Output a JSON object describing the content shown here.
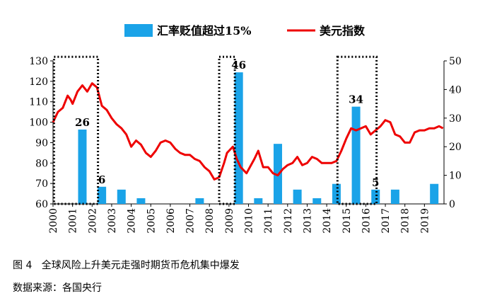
{
  "caption": {
    "figure": "图 4   全球风险上升美元走强时期货币危机集中爆发",
    "source": "数据来源：各国央行"
  },
  "chart_data": {
    "type": "bar+line",
    "legend": {
      "placement": "top-center",
      "bar_label": "汇率贬值超过15%",
      "line_label": "美元指数"
    },
    "colors": {
      "bar": "#1aa3e8",
      "line": "#ee0000",
      "highlight_box": "#000000"
    },
    "left_axis": {
      "ylim": [
        60,
        130
      ],
      "ticks": [
        60,
        70,
        80,
        90,
        100,
        110,
        120,
        130
      ]
    },
    "right_axis": {
      "ylim": [
        0,
        50
      ],
      "ticks": [
        0,
        10,
        20,
        30,
        40,
        50
      ]
    },
    "x_axis": {
      "range": [
        2000,
        2020
      ],
      "tick_labels": [
        "2000",
        "2001",
        "2002",
        "2003",
        "2004",
        "2005",
        "2006",
        "2007",
        "2008",
        "2009",
        "2010",
        "2011",
        "2012",
        "2013",
        "2014",
        "2015",
        "2016",
        "2017",
        "2018",
        "2019"
      ]
    },
    "bars": {
      "name": "汇率贬值超过15%",
      "axis": "right",
      "points": [
        {
          "x": 2001,
          "value": 26,
          "label": "26"
        },
        {
          "x": 2002,
          "value": 6,
          "label": "6"
        },
        {
          "x": 2003,
          "value": 5
        },
        {
          "x": 2004,
          "value": 2
        },
        {
          "x": 2007,
          "value": 2
        },
        {
          "x": 2009,
          "value": 46,
          "label": "46"
        },
        {
          "x": 2010,
          "value": 2
        },
        {
          "x": 2011,
          "value": 21
        },
        {
          "x": 2012,
          "value": 5
        },
        {
          "x": 2013,
          "value": 2
        },
        {
          "x": 2014,
          "value": 7
        },
        {
          "x": 2015,
          "value": 34,
          "label": "34"
        },
        {
          "x": 2016,
          "value": 5,
          "label": "5"
        },
        {
          "x": 2017,
          "value": 5
        },
        {
          "x": 2019,
          "value": 7
        }
      ]
    },
    "line": {
      "name": "美元指数",
      "axis": "left",
      "points": [
        [
          2000.0,
          100
        ],
        [
          2000.25,
          105
        ],
        [
          2000.5,
          107
        ],
        [
          2000.75,
          113
        ],
        [
          2000.9,
          111
        ],
        [
          2001.0,
          109
        ],
        [
          2001.25,
          115
        ],
        [
          2001.5,
          118
        ],
        [
          2001.75,
          115
        ],
        [
          2002.0,
          119
        ],
        [
          2002.25,
          117
        ],
        [
          2002.5,
          108
        ],
        [
          2002.75,
          106
        ],
        [
          2003.0,
          102
        ],
        [
          2003.25,
          99
        ],
        [
          2003.5,
          97
        ],
        [
          2003.75,
          94
        ],
        [
          2004.0,
          88
        ],
        [
          2004.25,
          91
        ],
        [
          2004.5,
          89
        ],
        [
          2004.75,
          85
        ],
        [
          2005.0,
          83
        ],
        [
          2005.25,
          86
        ],
        [
          2005.5,
          90
        ],
        [
          2005.75,
          91
        ],
        [
          2006.0,
          90
        ],
        [
          2006.25,
          87
        ],
        [
          2006.5,
          85
        ],
        [
          2006.75,
          84
        ],
        [
          2007.0,
          84
        ],
        [
          2007.25,
          82
        ],
        [
          2007.5,
          81
        ],
        [
          2007.75,
          78
        ],
        [
          2008.0,
          76
        ],
        [
          2008.25,
          72
        ],
        [
          2008.5,
          73
        ],
        [
          2008.75,
          80
        ],
        [
          2008.9,
          85
        ],
        [
          2009.0,
          86
        ],
        [
          2009.2,
          88
        ],
        [
          2009.4,
          82
        ],
        [
          2009.6,
          78
        ],
        [
          2009.9,
          75
        ],
        [
          2010.3,
          82
        ],
        [
          2010.5,
          86
        ],
        [
          2010.75,
          78
        ],
        [
          2011.0,
          78
        ],
        [
          2011.25,
          75
        ],
        [
          2011.5,
          74
        ],
        [
          2011.75,
          77
        ],
        [
          2012.0,
          79
        ],
        [
          2012.25,
          80
        ],
        [
          2012.5,
          83
        ],
        [
          2012.75,
          79
        ],
        [
          2013.0,
          80
        ],
        [
          2013.25,
          83
        ],
        [
          2013.5,
          82
        ],
        [
          2013.75,
          80
        ],
        [
          2014.0,
          80
        ],
        [
          2014.25,
          80
        ],
        [
          2014.5,
          81
        ],
        [
          2014.75,
          86
        ],
        [
          2015.0,
          92
        ],
        [
          2015.25,
          97
        ],
        [
          2015.5,
          96
        ],
        [
          2015.75,
          97
        ],
        [
          2016.0,
          98
        ],
        [
          2016.25,
          94
        ],
        [
          2016.5,
          96
        ],
        [
          2016.75,
          98
        ],
        [
          2017.0,
          101
        ],
        [
          2017.25,
          100
        ],
        [
          2017.5,
          94
        ],
        [
          2017.75,
          93
        ],
        [
          2018.0,
          90
        ],
        [
          2018.25,
          90
        ],
        [
          2018.5,
          95
        ],
        [
          2018.75,
          96
        ],
        [
          2019.0,
          96
        ],
        [
          2019.25,
          97
        ],
        [
          2019.5,
          97
        ],
        [
          2019.75,
          98
        ],
        [
          2019.95,
          97
        ]
      ]
    },
    "highlight_boxes": [
      {
        "x": [
          2000.05,
          2002.3
        ],
        "y": [
          60,
          132
        ]
      },
      {
        "x": [
          2008.5,
          2009.3
        ],
        "y": [
          60,
          132
        ]
      },
      {
        "x": [
          2014.55,
          2016.55
        ],
        "y": [
          60,
          132
        ]
      }
    ]
  }
}
